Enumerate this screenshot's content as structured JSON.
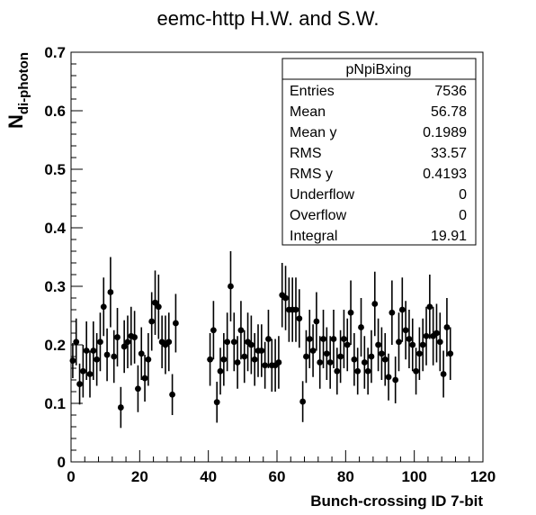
{
  "chart_data": {
    "type": "scatter",
    "title": "eemc-http H.W. and S.W.",
    "xlabel": "Bunch-crossing ID 7-bit",
    "ylabel_main": "N",
    "ylabel_sub": "di-photon",
    "xlim": [
      0,
      120
    ],
    "ylim": [
      0,
      0.7
    ],
    "x_ticks": [
      "0",
      "20",
      "40",
      "60",
      "80",
      "100",
      "120"
    ],
    "y_ticks": [
      "0",
      "0.1",
      "0.2",
      "0.3",
      "0.4",
      "0.5",
      "0.6",
      "0.7"
    ],
    "grid": false,
    "legend": "none",
    "points": [
      {
        "x": 0.5,
        "y": 0.173,
        "e": 0.03
      },
      {
        "x": 1.5,
        "y": 0.205,
        "e": 0.04
      },
      {
        "x": 2.5,
        "y": 0.133,
        "e": 0.035
      },
      {
        "x": 3.5,
        "y": 0.155,
        "e": 0.045
      },
      {
        "x": 4.5,
        "y": 0.19,
        "e": 0.05
      },
      {
        "x": 5.5,
        "y": 0.15,
        "e": 0.04
      },
      {
        "x": 6.5,
        "y": 0.19,
        "e": 0.05
      },
      {
        "x": 7.5,
        "y": 0.175,
        "e": 0.045
      },
      {
        "x": 8.5,
        "y": 0.205,
        "e": 0.05
      },
      {
        "x": 9.5,
        "y": 0.265,
        "e": 0.05
      },
      {
        "x": 10.5,
        "y": 0.183,
        "e": 0.045
      },
      {
        "x": 11.5,
        "y": 0.29,
        "e": 0.06
      },
      {
        "x": 12.5,
        "y": 0.18,
        "e": 0.045
      },
      {
        "x": 13.5,
        "y": 0.213,
        "e": 0.05
      },
      {
        "x": 14.5,
        "y": 0.093,
        "e": 0.035
      },
      {
        "x": 15.5,
        "y": 0.197,
        "e": 0.045
      },
      {
        "x": 16.5,
        "y": 0.205,
        "e": 0.045
      },
      {
        "x": 17.5,
        "y": 0.215,
        "e": 0.05
      },
      {
        "x": 18.5,
        "y": 0.213,
        "e": 0.045
      },
      {
        "x": 19.5,
        "y": 0.125,
        "e": 0.04
      },
      {
        "x": 20.5,
        "y": 0.185,
        "e": 0.045
      },
      {
        "x": 21.5,
        "y": 0.143,
        "e": 0.04
      },
      {
        "x": 22.5,
        "y": 0.175,
        "e": 0.045
      },
      {
        "x": 23.5,
        "y": 0.24,
        "e": 0.05
      },
      {
        "x": 24.5,
        "y": 0.272,
        "e": 0.055
      },
      {
        "x": 25.5,
        "y": 0.265,
        "e": 0.055
      },
      {
        "x": 26.5,
        "y": 0.205,
        "e": 0.045
      },
      {
        "x": 27.5,
        "y": 0.2,
        "e": 0.05
      },
      {
        "x": 28.5,
        "y": 0.205,
        "e": 0.05
      },
      {
        "x": 29.5,
        "y": 0.115,
        "e": 0.035
      },
      {
        "x": 30.5,
        "y": 0.237,
        "e": 0.05
      },
      {
        "x": 40.5,
        "y": 0.175,
        "e": 0.045
      },
      {
        "x": 41.5,
        "y": 0.225,
        "e": 0.05
      },
      {
        "x": 42.5,
        "y": 0.102,
        "e": 0.035
      },
      {
        "x": 43.5,
        "y": 0.155,
        "e": 0.04
      },
      {
        "x": 44.5,
        "y": 0.175,
        "e": 0.045
      },
      {
        "x": 45.5,
        "y": 0.205,
        "e": 0.05
      },
      {
        "x": 46.5,
        "y": 0.3,
        "e": 0.06
      },
      {
        "x": 47.5,
        "y": 0.205,
        "e": 0.05
      },
      {
        "x": 48.5,
        "y": 0.17,
        "e": 0.045
      },
      {
        "x": 49.5,
        "y": 0.225,
        "e": 0.05
      },
      {
        "x": 50.5,
        "y": 0.18,
        "e": 0.045
      },
      {
        "x": 51.5,
        "y": 0.205,
        "e": 0.05
      },
      {
        "x": 52.5,
        "y": 0.2,
        "e": 0.05
      },
      {
        "x": 53.5,
        "y": 0.175,
        "e": 0.045
      },
      {
        "x": 54.5,
        "y": 0.19,
        "e": 0.045
      },
      {
        "x": 55.5,
        "y": 0.19,
        "e": 0.045
      },
      {
        "x": 56.5,
        "y": 0.165,
        "e": 0.04
      },
      {
        "x": 57.5,
        "y": 0.21,
        "e": 0.05
      },
      {
        "x": 58.5,
        "y": 0.165,
        "e": 0.045
      },
      {
        "x": 59.5,
        "y": 0.165,
        "e": 0.045
      },
      {
        "x": 60.5,
        "y": 0.17,
        "e": 0.045
      },
      {
        "x": 61.5,
        "y": 0.285,
        "e": 0.055
      },
      {
        "x": 62.5,
        "y": 0.28,
        "e": 0.055
      },
      {
        "x": 63.5,
        "y": 0.26,
        "e": 0.055
      },
      {
        "x": 64.5,
        "y": 0.26,
        "e": 0.055
      },
      {
        "x": 65.5,
        "y": 0.26,
        "e": 0.055
      },
      {
        "x": 66.5,
        "y": 0.245,
        "e": 0.05
      },
      {
        "x": 67.5,
        "y": 0.103,
        "e": 0.035
      },
      {
        "x": 68.5,
        "y": 0.18,
        "e": 0.045
      },
      {
        "x": 69.5,
        "y": 0.21,
        "e": 0.05
      },
      {
        "x": 70.5,
        "y": 0.19,
        "e": 0.045
      },
      {
        "x": 71.5,
        "y": 0.24,
        "e": 0.05
      },
      {
        "x": 72.5,
        "y": 0.17,
        "e": 0.045
      },
      {
        "x": 73.5,
        "y": 0.21,
        "e": 0.05
      },
      {
        "x": 74.5,
        "y": 0.185,
        "e": 0.045
      },
      {
        "x": 75.5,
        "y": 0.17,
        "e": 0.045
      },
      {
        "x": 76.5,
        "y": 0.21,
        "e": 0.05
      },
      {
        "x": 77.5,
        "y": 0.155,
        "e": 0.04
      },
      {
        "x": 78.5,
        "y": 0.18,
        "e": 0.045
      },
      {
        "x": 79.5,
        "y": 0.21,
        "e": 0.05
      },
      {
        "x": 80.5,
        "y": 0.2,
        "e": 0.045
      },
      {
        "x": 81.5,
        "y": 0.255,
        "e": 0.055
      },
      {
        "x": 82.5,
        "y": 0.175,
        "e": 0.045
      },
      {
        "x": 83.5,
        "y": 0.155,
        "e": 0.04
      },
      {
        "x": 84.5,
        "y": 0.23,
        "e": 0.05
      },
      {
        "x": 85.5,
        "y": 0.17,
        "e": 0.045
      },
      {
        "x": 86.5,
        "y": 0.155,
        "e": 0.04
      },
      {
        "x": 87.5,
        "y": 0.18,
        "e": 0.045
      },
      {
        "x": 88.5,
        "y": 0.27,
        "e": 0.055
      },
      {
        "x": 89.5,
        "y": 0.2,
        "e": 0.045
      },
      {
        "x": 90.5,
        "y": 0.185,
        "e": 0.045
      },
      {
        "x": 91.5,
        "y": 0.175,
        "e": 0.045
      },
      {
        "x": 92.5,
        "y": 0.145,
        "e": 0.04
      },
      {
        "x": 93.5,
        "y": 0.255,
        "e": 0.055
      },
      {
        "x": 94.5,
        "y": 0.14,
        "e": 0.04
      },
      {
        "x": 95.5,
        "y": 0.205,
        "e": 0.05
      },
      {
        "x": 96.5,
        "y": 0.26,
        "e": 0.055
      },
      {
        "x": 97.5,
        "y": 0.225,
        "e": 0.05
      },
      {
        "x": 98.5,
        "y": 0.21,
        "e": 0.05
      },
      {
        "x": 99.5,
        "y": 0.2,
        "e": 0.045
      },
      {
        "x": 100.5,
        "y": 0.155,
        "e": 0.04
      },
      {
        "x": 101.5,
        "y": 0.185,
        "e": 0.045
      },
      {
        "x": 102.5,
        "y": 0.2,
        "e": 0.045
      },
      {
        "x": 103.5,
        "y": 0.215,
        "e": 0.05
      },
      {
        "x": 104.5,
        "y": 0.265,
        "e": 0.055
      },
      {
        "x": 105.5,
        "y": 0.215,
        "e": 0.05
      },
      {
        "x": 106.5,
        "y": 0.22,
        "e": 0.05
      },
      {
        "x": 107.5,
        "y": 0.205,
        "e": 0.05
      },
      {
        "x": 108.5,
        "y": 0.15,
        "e": 0.04
      },
      {
        "x": 109.5,
        "y": 0.23,
        "e": 0.05
      },
      {
        "x": 110.5,
        "y": 0.185,
        "e": 0.045
      }
    ]
  },
  "stats_box": {
    "title": "pNpiBxing",
    "rows": [
      {
        "label": "Entries",
        "value": "7536"
      },
      {
        "label": "Mean",
        "value": "56.78"
      },
      {
        "label": "Mean y",
        "value": "0.1989"
      },
      {
        "label": "RMS",
        "value": "33.57"
      },
      {
        "label": "RMS y",
        "value": "0.4193"
      },
      {
        "label": "Underflow",
        "value": "0"
      },
      {
        "label": "Overflow",
        "value": "0"
      },
      {
        "label": "Integral",
        "value": "19.91"
      }
    ]
  }
}
